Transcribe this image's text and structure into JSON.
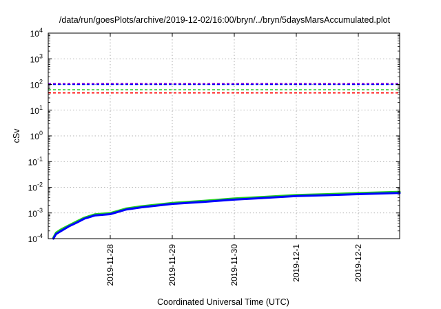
{
  "chart_data": {
    "type": "line",
    "title": "/data/run/goesPlots/archive/2019-12-02/16:00/bryn/../bryn/5daysMarsAccumulated.plot",
    "xlabel": "Coordinated Universal Time (UTC)",
    "ylabel": "cSv",
    "y_scale": "log",
    "ylim": [
      0.0001,
      10000
    ],
    "y_ticks": [
      {
        "value": 0.0001,
        "mantissa": "10",
        "exp": "-4"
      },
      {
        "value": 0.001,
        "mantissa": "10",
        "exp": "-3"
      },
      {
        "value": 0.01,
        "mantissa": "10",
        "exp": "-2"
      },
      {
        "value": 0.1,
        "mantissa": "10",
        "exp": "-1"
      },
      {
        "value": 1,
        "mantissa": "10",
        "exp": "0"
      },
      {
        "value": 10,
        "mantissa": "10",
        "exp": "1"
      },
      {
        "value": 100,
        "mantissa": "10",
        "exp": "2"
      },
      {
        "value": 1000,
        "mantissa": "10",
        "exp": "3"
      },
      {
        "value": 10000,
        "mantissa": "10",
        "exp": "4"
      }
    ],
    "xlim": [
      "2019-11-27T00:00",
      "2019-12-02T16:00"
    ],
    "x_ticks": [
      "2019-11-28",
      "2019-11-29",
      "2019-11-30",
      "2019-12-1",
      "2019-12-2"
    ],
    "grid": true,
    "threshold_lines": [
      {
        "value": 110,
        "color": "#9400d3",
        "style": "dashed"
      },
      {
        "value": 100,
        "color": "#0000ff",
        "style": "dashed"
      },
      {
        "value": 62,
        "color": "#22cc22",
        "style": "dashed"
      },
      {
        "value": 47,
        "color": "#ff0000",
        "style": "dashed"
      }
    ],
    "series": [
      {
        "color": "#22cc22",
        "x": [
          "2019-11-27T02:00",
          "2019-11-27T03:00",
          "2019-11-27T05:00",
          "2019-11-27T08:00",
          "2019-11-27T11:00",
          "2019-11-27T14:00",
          "2019-11-27T18:00",
          "2019-11-28T00:00",
          "2019-11-28T06:00",
          "2019-11-28T12:00",
          "2019-11-29T00:00",
          "2019-11-29T12:00",
          "2019-11-30T00:00",
          "2019-11-30T12:00",
          "2019-12-01T00:00",
          "2019-12-01T12:00",
          "2019-12-02T00:00",
          "2019-12-02T16:00"
        ],
        "y": [
          0.00011,
          0.00017,
          0.00023,
          0.00033,
          0.00047,
          0.00066,
          0.00088,
          0.00099,
          0.00148,
          0.00182,
          0.00246,
          0.00295,
          0.00364,
          0.00423,
          0.00497,
          0.0054,
          0.00595,
          0.00664
        ]
      },
      {
        "color": "#0000ff",
        "x": [
          "2019-11-27T02:00",
          "2019-11-27T03:00",
          "2019-11-27T05:00",
          "2019-11-27T08:00",
          "2019-11-27T11:00",
          "2019-11-27T14:00",
          "2019-11-27T18:00",
          "2019-11-28T00:00",
          "2019-11-28T06:00",
          "2019-11-28T12:00",
          "2019-11-29T00:00",
          "2019-11-29T12:00",
          "2019-11-30T00:00",
          "2019-11-30T12:00",
          "2019-12-01T00:00",
          "2019-12-01T12:00",
          "2019-12-02T00:00",
          "2019-12-02T16:00"
        ],
        "y": [
          0.0001,
          0.00015,
          0.0002,
          0.0003,
          0.00042,
          0.0006,
          0.0008,
          0.0009,
          0.00135,
          0.00165,
          0.00225,
          0.0027,
          0.0033,
          0.00385,
          0.00455,
          0.0049,
          0.0054,
          0.006
        ]
      }
    ]
  }
}
